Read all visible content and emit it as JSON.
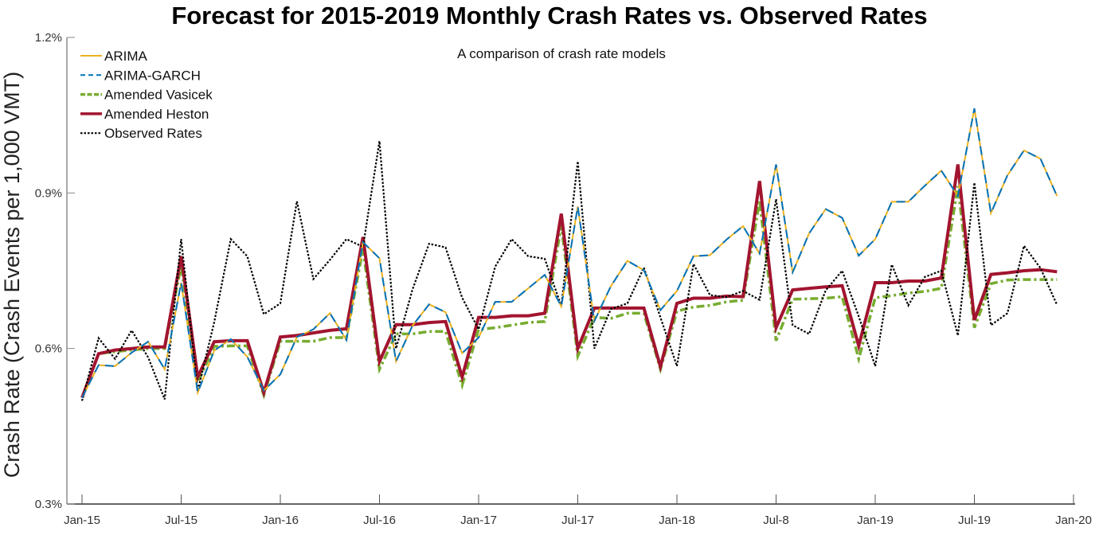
{
  "chart_data": {
    "type": "line",
    "title": "Forecast for 2015-2019 Monthly Crash Rates vs. Observed Rates",
    "subtitle": "A comparison of crash rate models",
    "xlabel": "",
    "ylabel": "Crash Rate (Crash Events per 1,000 VMT)",
    "ylim": [
      0.3,
      1.2
    ],
    "y_unit": "%",
    "y_ticks": [
      "0.3%",
      "0.6%",
      "0.9%",
      "1.2%"
    ],
    "y_tick_values": [
      0.3,
      0.6,
      0.9,
      1.2
    ],
    "x_ticks": [
      "Jan-15",
      "Jul-15",
      "Jan-16",
      "Jul-16",
      "Jan-17",
      "Jul-17",
      "Jan-18",
      "Jul-8",
      "Jan-19",
      "Jul-19",
      "Jan-20"
    ],
    "x_tick_months": [
      0,
      6,
      12,
      18,
      24,
      30,
      36,
      42,
      48,
      54,
      60
    ],
    "x_range_months": [
      0,
      60
    ],
    "grid": false,
    "legend_position": "top-left",
    "series": [
      {
        "name": "ARIMA",
        "color": "#EDB120",
        "style": "solid",
        "values": [
          0.505,
          0.568,
          0.566,
          0.592,
          0.613,
          0.56,
          0.727,
          0.515,
          0.596,
          0.618,
          0.584,
          0.519,
          0.55,
          0.622,
          0.637,
          0.668,
          0.616,
          0.805,
          0.774,
          0.575,
          0.644,
          0.685,
          0.67,
          0.591,
          0.621,
          0.69,
          0.69,
          0.716,
          0.742,
          0.681,
          0.874,
          0.653,
          0.72,
          0.769,
          0.751,
          0.674,
          0.711,
          0.778,
          0.78,
          0.81,
          0.836,
          0.783,
          0.955,
          0.747,
          0.822,
          0.869,
          0.852,
          0.779,
          0.811,
          0.883,
          0.883,
          0.914,
          0.943,
          0.894,
          1.063,
          0.861,
          0.934,
          0.982,
          0.966,
          0.894
        ]
      },
      {
        "name": "ARIMA-GARCH",
        "color": "#0072BD",
        "style": "dashed",
        "values": [
          0.505,
          0.568,
          0.566,
          0.592,
          0.613,
          0.56,
          0.727,
          0.515,
          0.596,
          0.618,
          0.584,
          0.519,
          0.55,
          0.622,
          0.637,
          0.668,
          0.616,
          0.805,
          0.774,
          0.575,
          0.644,
          0.685,
          0.67,
          0.591,
          0.621,
          0.69,
          0.69,
          0.716,
          0.742,
          0.681,
          0.874,
          0.653,
          0.72,
          0.769,
          0.751,
          0.674,
          0.711,
          0.778,
          0.78,
          0.81,
          0.836,
          0.783,
          0.955,
          0.747,
          0.822,
          0.869,
          0.852,
          0.779,
          0.811,
          0.883,
          0.883,
          0.914,
          0.943,
          0.894,
          1.063,
          0.861,
          0.934,
          0.982,
          0.966,
          0.894
        ]
      },
      {
        "name": "Amended Vasicek",
        "color": "#77AC30",
        "style": "dashdot",
        "values": [
          0.505,
          0.59,
          0.594,
          0.597,
          0.6,
          0.6,
          0.76,
          0.535,
          0.604,
          0.605,
          0.605,
          0.51,
          0.614,
          0.614,
          0.614,
          0.621,
          0.621,
          0.792,
          0.56,
          0.628,
          0.628,
          0.633,
          0.633,
          0.529,
          0.637,
          0.64,
          0.645,
          0.65,
          0.652,
          0.837,
          0.585,
          0.66,
          0.658,
          0.668,
          0.668,
          0.56,
          0.672,
          0.68,
          0.683,
          0.69,
          0.693,
          0.885,
          0.615,
          0.695,
          0.696,
          0.697,
          0.7,
          0.58,
          0.698,
          0.702,
          0.707,
          0.71,
          0.716,
          0.913,
          0.64,
          0.725,
          0.732,
          0.733,
          0.733,
          0.733
        ]
      },
      {
        "name": "Amended Heston",
        "color": "#A2142F",
        "style": "solid",
        "values": [
          0.505,
          0.59,
          0.597,
          0.6,
          0.603,
          0.603,
          0.778,
          0.545,
          0.613,
          0.615,
          0.615,
          0.515,
          0.622,
          0.625,
          0.63,
          0.635,
          0.638,
          0.815,
          0.575,
          0.646,
          0.646,
          0.65,
          0.652,
          0.545,
          0.66,
          0.66,
          0.663,
          0.663,
          0.668,
          0.86,
          0.6,
          0.678,
          0.678,
          0.678,
          0.678,
          0.565,
          0.687,
          0.697,
          0.697,
          0.701,
          0.7,
          0.923,
          0.64,
          0.713,
          0.716,
          0.719,
          0.721,
          0.605,
          0.727,
          0.727,
          0.73,
          0.73,
          0.736,
          0.955,
          0.655,
          0.743,
          0.746,
          0.75,
          0.752,
          0.748
        ]
      },
      {
        "name": "Observed Rates",
        "color": "#000000",
        "style": "dotted",
        "values": [
          0.499,
          0.62,
          0.58,
          0.635,
          0.583,
          0.502,
          0.811,
          0.518,
          0.651,
          0.811,
          0.778,
          0.666,
          0.687,
          0.884,
          0.734,
          0.771,
          0.811,
          0.796,
          1.0,
          0.6,
          0.714,
          0.802,
          0.795,
          0.698,
          0.637,
          0.758,
          0.811,
          0.778,
          0.773,
          0.682,
          0.961,
          0.6,
          0.676,
          0.687,
          0.756,
          0.66,
          0.566,
          0.763,
          0.703,
          0.699,
          0.711,
          0.694,
          0.888,
          0.645,
          0.628,
          0.712,
          0.75,
          0.662,
          0.566,
          0.762,
          0.683,
          0.738,
          0.75,
          0.625,
          0.92,
          0.645,
          0.668,
          0.798,
          0.755,
          0.684
        ]
      }
    ]
  }
}
